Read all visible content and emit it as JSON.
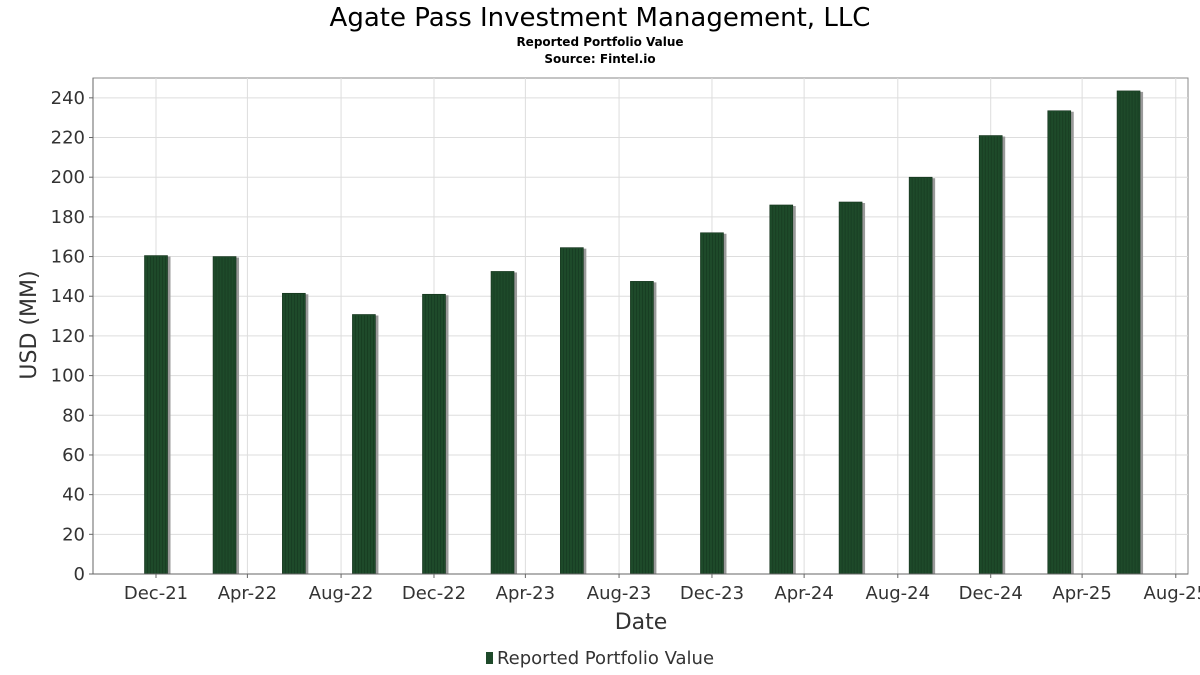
{
  "chart_data": {
    "type": "bar",
    "title": "Agate Pass Investment Management, LLC",
    "subtitle": "Reported Portfolio Value",
    "source": "Source: Fintel.io",
    "xlabel": "Date",
    "ylabel": "USD (MM)",
    "ylim": [
      0,
      250
    ],
    "yticks": [
      0,
      20,
      40,
      60,
      80,
      100,
      120,
      140,
      160,
      180,
      200,
      220,
      240
    ],
    "xticks": [
      "Dec-21",
      "Apr-22",
      "Aug-22",
      "Dec-22",
      "Apr-23",
      "Aug-23",
      "Dec-23",
      "Apr-24",
      "Aug-24",
      "Dec-24",
      "Apr-25",
      "Aug-25"
    ],
    "x": [
      "2021-12-31",
      "2022-03-31",
      "2022-06-30",
      "2022-09-30",
      "2022-12-31",
      "2023-03-31",
      "2023-06-30",
      "2023-09-30",
      "2023-12-31",
      "2024-03-31",
      "2024-06-30",
      "2024-09-30",
      "2024-12-31",
      "2025-03-31",
      "2025-06-30"
    ],
    "series": [
      {
        "name": "Reported Portfolio Value",
        "values": [
          160.5,
          160,
          141.5,
          130.8,
          141,
          152.5,
          164.5,
          147.5,
          172,
          186,
          187.5,
          200,
          221,
          233.5,
          243.5
        ]
      }
    ],
    "grid": true,
    "legend_position": "bottom-center",
    "bar_color": "#1e4a2a"
  }
}
